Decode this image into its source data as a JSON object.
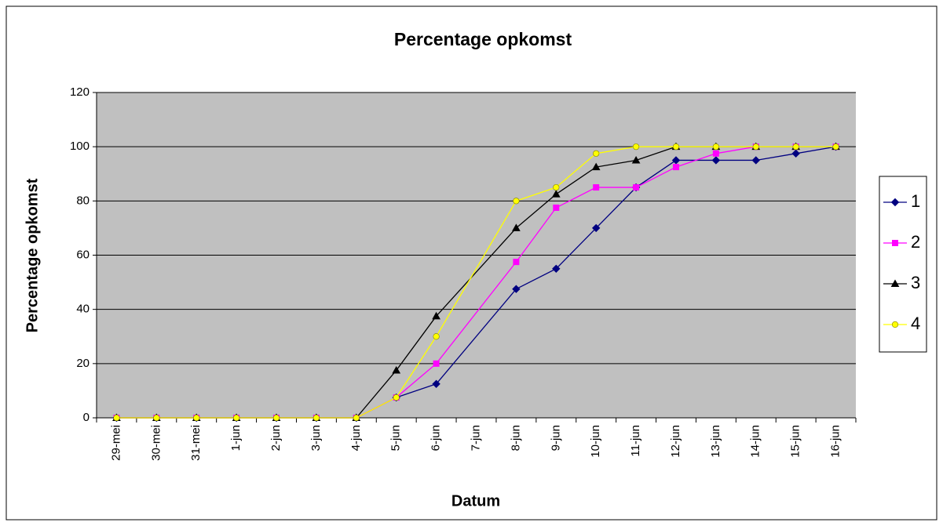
{
  "chart_data": {
    "type": "line",
    "title": "Percentage opkomst",
    "x_label": "Datum",
    "y_label": "Percentage opkomst",
    "categories": [
      "29-mei",
      "30-mei",
      "31-mei",
      "1-jun",
      "2-jun",
      "3-jun",
      "4-jun",
      "5-jun",
      "6-jun",
      "7-jun",
      "8-jun",
      "9-jun",
      "10-jun",
      "11-jun",
      "12-jun",
      "13-jun",
      "14-jun",
      "15-jun",
      "16-jun"
    ],
    "series": [
      {
        "name": "1",
        "color": "#000080",
        "marker": "diamond",
        "values": [
          0,
          0,
          0,
          0,
          0,
          0,
          0,
          7.5,
          12.5,
          null,
          47.5,
          55,
          70,
          85,
          95,
          95,
          95,
          97.5,
          100
        ]
      },
      {
        "name": "2",
        "color": "#ff00ff",
        "marker": "square",
        "values": [
          0,
          0,
          0,
          0,
          0,
          0,
          0,
          7.5,
          20,
          null,
          57.5,
          77.5,
          85,
          85,
          92.5,
          97.5,
          100,
          100,
          100
        ]
      },
      {
        "name": "3",
        "color": "#000000",
        "marker": "triangle",
        "values": [
          0,
          0,
          0,
          0,
          0,
          0,
          0,
          17.5,
          37.5,
          null,
          70,
          82.5,
          92.5,
          95,
          100,
          100,
          100,
          100,
          100
        ]
      },
      {
        "name": "4",
        "color": "#ffff00",
        "marker": "circle",
        "values": [
          0,
          0,
          0,
          0,
          0,
          0,
          0,
          7.5,
          30,
          null,
          80,
          85,
          97.5,
          100,
          100,
          100,
          100,
          100,
          100
        ]
      }
    ],
    "ylim": [
      0,
      120
    ],
    "yticks": [
      0,
      20,
      40,
      60,
      80,
      100,
      120
    ],
    "grid": true,
    "legend": "right"
  }
}
